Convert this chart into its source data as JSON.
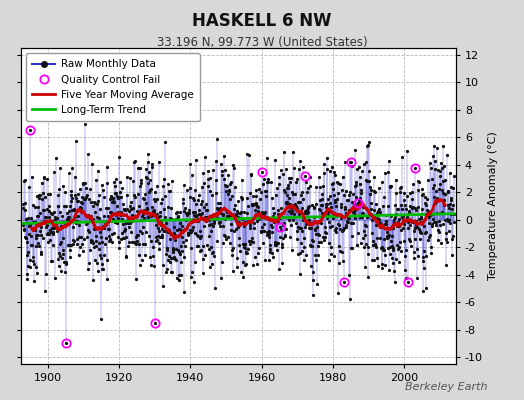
{
  "title": "HASKELL 6 NW",
  "subtitle": "33.196 N, 99.773 W (United States)",
  "right_ylabel": "Temperature Anomaly (°C)",
  "watermark": "Berkeley Earth",
  "year_start": 1893,
  "year_end": 2013,
  "ylim": [
    -10.5,
    12.5
  ],
  "yticks": [
    -10,
    -8,
    -6,
    -4,
    -2,
    0,
    2,
    4,
    6,
    8,
    10,
    12
  ],
  "xticks": [
    1900,
    1920,
    1940,
    1960,
    1980,
    2000
  ],
  "bg_color": "#d8d8d8",
  "plot_bg_color": "#ffffff",
  "raw_line_color": "#3333cc",
  "raw_marker_color": "#111111",
  "qc_fail_color": "#ff00ff",
  "moving_avg_color": "#cc0000",
  "trend_color": "#00bb00",
  "seed": 42,
  "n_months": 1452,
  "noise_scale": 2.0,
  "moving_avg_window": 60,
  "qc_fail_years": [
    1895,
    1905,
    1930,
    1960,
    1965,
    1972,
    1983,
    1985,
    1987,
    2001,
    2003
  ]
}
